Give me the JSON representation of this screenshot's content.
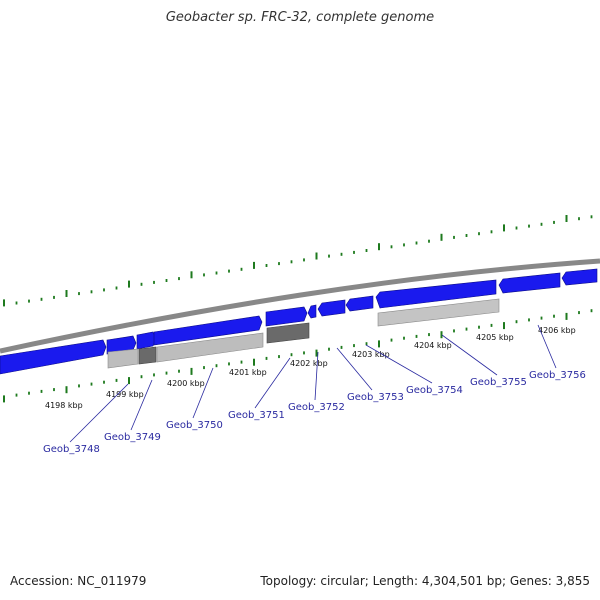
{
  "title": "Geobacter sp. FRC-32, complete genome",
  "footer": {
    "accession": "Accession: NC_011979",
    "stats": "Topology: circular; Length: 4,304,501 bp; Genes: 3,855"
  },
  "kbp_ticks": [
    "4198 kbp",
    "4199 kbp",
    "4200 kbp",
    "4201 kbp",
    "4202 kbp",
    "4203 kbp",
    "4204 kbp",
    "4205 kbp",
    "4206 kbp"
  ],
  "genes": [
    "Geob_3748",
    "Geob_3749",
    "Geob_3750",
    "Geob_3751",
    "Geob_3752",
    "Geob_3753",
    "Geob_3754",
    "Geob_3755",
    "Geob_3756"
  ],
  "colors": {
    "cds": "#1a1aee",
    "rna_light": "#bdbdbd",
    "rna_dark": "#6a6a6a",
    "backbone": "#888888",
    "ticks": "#1e7a1e",
    "gene_label": "#2a2aa0"
  }
}
